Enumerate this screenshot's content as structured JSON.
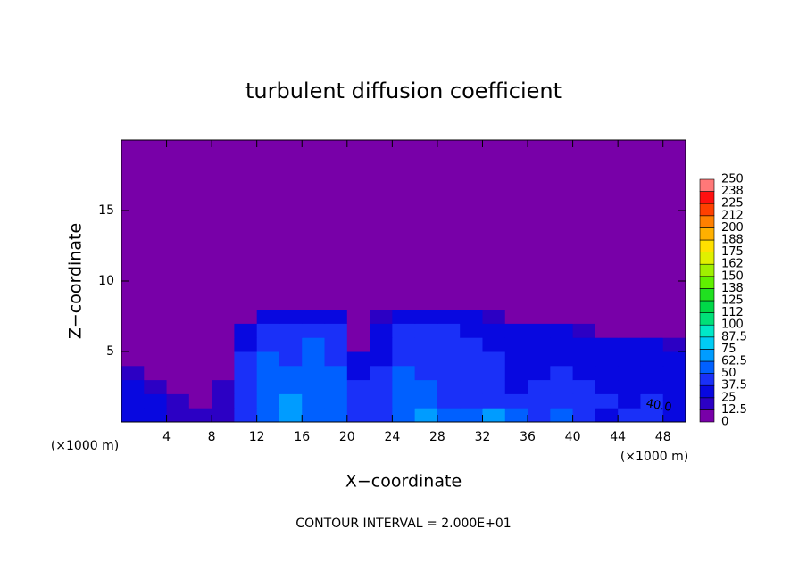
{
  "chart_data": {
    "type": "heatmap",
    "title": "turbulent diffusion coefficient",
    "x_label": "X−coordinate",
    "y_label": "Z−coordinate",
    "x_unit": "(×1000 m)",
    "x_unit_right": "(×1000 m)",
    "footer": "CONTOUR INTERVAL = 2.000E+01",
    "annotations": [
      "40.0"
    ],
    "xlim": [
      0,
      50
    ],
    "ylim": [
      0,
      20
    ],
    "xticks": [
      4,
      8,
      12,
      16,
      20,
      24,
      28,
      32,
      36,
      40,
      44,
      48
    ],
    "yticks": [
      5,
      10,
      15
    ],
    "x": [
      1,
      3,
      5,
      7,
      9,
      11,
      13,
      15,
      17,
      19,
      21,
      23,
      25,
      27,
      29,
      31,
      33,
      35,
      37,
      39,
      41,
      43,
      45,
      47,
      49
    ],
    "y": [
      0.5,
      1.5,
      2.5,
      3.5,
      4.5,
      5.5,
      6.5,
      7.5,
      8.5
    ],
    "z": [
      [
        25,
        30,
        20,
        15,
        20,
        40,
        55,
        70,
        60,
        55,
        45,
        40,
        60,
        70,
        55,
        50,
        65,
        50,
        45,
        50,
        40,
        35,
        45,
        40,
        35
      ],
      [
        30,
        25,
        15,
        10,
        20,
        45,
        50,
        65,
        55,
        50,
        40,
        45,
        60,
        55,
        45,
        40,
        45,
        40,
        45,
        45,
        40,
        40,
        35,
        40,
        35
      ],
      [
        30,
        20,
        10,
        5,
        15,
        45,
        50,
        60,
        60,
        55,
        40,
        45,
        55,
        50,
        45,
        40,
        40,
        35,
        40,
        45,
        40,
        35,
        30,
        35,
        30
      ],
      [
        15,
        10,
        5,
        0,
        10,
        40,
        55,
        50,
        60,
        50,
        35,
        40,
        50,
        45,
        45,
        40,
        40,
        35,
        35,
        40,
        35,
        30,
        35,
        30,
        30
      ],
      [
        5,
        5,
        0,
        0,
        5,
        40,
        50,
        45,
        55,
        45,
        30,
        35,
        45,
        45,
        40,
        40,
        40,
        35,
        35,
        35,
        30,
        35,
        30,
        30,
        25
      ],
      [
        0,
        0,
        0,
        0,
        0,
        35,
        45,
        45,
        50,
        45,
        10,
        35,
        45,
        45,
        40,
        40,
        35,
        35,
        35,
        35,
        30,
        30,
        25,
        25,
        15
      ],
      [
        0,
        0,
        0,
        0,
        0,
        30,
        40,
        40,
        45,
        40,
        5,
        30,
        40,
        40,
        40,
        35,
        35,
        30,
        30,
        25,
        20,
        10,
        5,
        5,
        0
      ],
      [
        0,
        0,
        0,
        0,
        0,
        10,
        25,
        25,
        30,
        25,
        0,
        20,
        30,
        30,
        30,
        25,
        20,
        10,
        5,
        0,
        0,
        0,
        0,
        0,
        0
      ],
      [
        0,
        0,
        0,
        0,
        0,
        0,
        0,
        0,
        0,
        0,
        0,
        0,
        5,
        5,
        5,
        0,
        0,
        0,
        0,
        0,
        0,
        0,
        0,
        0,
        0
      ]
    ],
    "levels": [
      0,
      12.5,
      25,
      37.5,
      50,
      62.5,
      75,
      87.5,
      100,
      112,
      125,
      138,
      150,
      162,
      175,
      188,
      200,
      212,
      225,
      238,
      250
    ],
    "colors": [
      "#7800a8",
      "#2c00c4",
      "#0808e0",
      "#1a30f8",
      "#0060ff",
      "#009cff",
      "#00ccf4",
      "#00e8c8",
      "#00e078",
      "#00d848",
      "#20e020",
      "#60f000",
      "#a0f000",
      "#e0f000",
      "#ffe000",
      "#ffb000",
      "#ff8000",
      "#ff4000",
      "#ff1010",
      "#ff7878"
    ]
  }
}
